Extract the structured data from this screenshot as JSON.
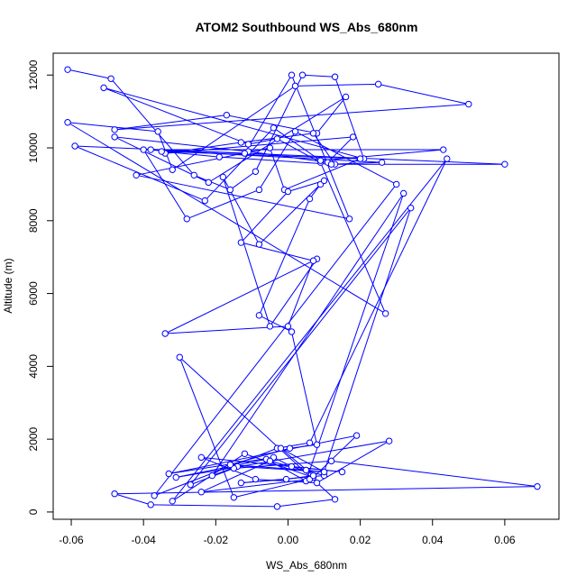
{
  "chart_data": {
    "type": "line",
    "title": "ATOM2 Southbound WS_Abs_680nm",
    "xlabel": "WS_Abs_680nm",
    "ylabel": "Altitude (m)",
    "xlim": [
      -0.065,
      0.075
    ],
    "ylim": [
      -200,
      12600
    ],
    "xticks": [
      -0.06,
      -0.04,
      -0.02,
      0.0,
      0.02,
      0.04,
      0.06
    ],
    "xtick_labels": [
      "-0.06",
      "-0.04",
      "-0.02",
      "0.00",
      "0.02",
      "0.04",
      "0.06"
    ],
    "yticks": [
      0,
      2000,
      4000,
      6000,
      8000,
      10000,
      12000
    ],
    "ytick_labels": [
      "0",
      "2000",
      "4000",
      "6000",
      "8000",
      "10000",
      "12000"
    ],
    "grid": false,
    "series": [
      {
        "color": "#0000ff",
        "marker": "open-circle",
        "x": [
          -0.061,
          -0.049,
          -0.026,
          -0.016,
          -0.009,
          0.004,
          0.013,
          0.021,
          -0.051,
          -0.011,
          -0.003,
          0.009,
          0.027,
          -0.061,
          -0.036,
          -0.032,
          0.002,
          0.025,
          0.05,
          -0.048,
          -0.017,
          0.008,
          0.016,
          -0.022,
          -0.048,
          -0.011,
          0.011,
          0.018,
          -0.034,
          -0.013,
          0.007,
          0.013,
          0.06,
          -0.059,
          -0.023,
          -0.004,
          0.009,
          0.043,
          -0.038,
          -0.012,
          0.001,
          0.017,
          -0.042,
          -0.005,
          -0.001,
          0.02,
          -0.035,
          -0.019,
          0.012,
          0.026,
          -0.04,
          -0.028,
          -0.008,
          0.002,
          0.03,
          -0.037,
          -0.003,
          0.006,
          0.044,
          -0.032,
          -0.012,
          0.007,
          0.019,
          -0.033,
          -0.004,
          0.001,
          0.015,
          -0.024,
          -0.009,
          0.008,
          0.028,
          -0.031,
          -0.006,
          0.005,
          0.032,
          -0.021,
          -0.014,
          0.01,
          0.034,
          -0.027,
          -0.015,
          0.012,
          0.069,
          -0.048,
          -0.038,
          -0.003,
          0.013,
          -0.03,
          -0.015,
          0.006,
          -0.024,
          -0.005,
          0.01,
          -0.013,
          -0.0005,
          0.007,
          -0.002,
          0.01,
          0.005,
          -0.016,
          0.0005,
          0.008,
          0.001,
          -0.008,
          0.006,
          0.009,
          -0.008,
          -0.018,
          -0.005,
          0.008,
          -0.034,
          0.0,
          0.007,
          -0.013,
          0.0,
          0.01
        ],
        "y": [
          12150,
          11900,
          9250,
          8850,
          9350,
          12000,
          11950,
          9700,
          11650,
          10100,
          10250,
          9600,
          5450,
          10700,
          10450,
          9400,
          11700,
          11750,
          11200,
          10500,
          10900,
          10400,
          11400,
          9050,
          10300,
          9900,
          9600,
          10300,
          9850,
          10150,
          10400,
          9550,
          9550,
          10050,
          8550,
          10550,
          9650,
          9950,
          9950,
          9850,
          12000,
          8050,
          9250,
          10000,
          8850,
          9700,
          9900,
          9750,
          9550,
          9600,
          9950,
          8050,
          8850,
          10450,
          9000,
          450,
          1750,
          1900,
          9700,
          300,
          1600,
          950,
          2100,
          1050,
          1500,
          1250,
          1100,
          1500,
          900,
          800,
          1950,
          950,
          1450,
          850,
          8750,
          1000,
          1250,
          1100,
          8350,
          750,
          1200,
          1400,
          700,
          500,
          200,
          150,
          350,
          4250,
          400,
          900,
          550,
          1400,
          1000,
          800,
          900,
          1000,
          1750,
          1100,
          1150,
          1300,
          1750,
          1850,
          4950,
          5400,
          8600,
          9000,
          7350,
          9200,
          5100,
          6950,
          4900,
          5100,
          6900,
          7400,
          8800,
          9100
        ]
      }
    ]
  }
}
